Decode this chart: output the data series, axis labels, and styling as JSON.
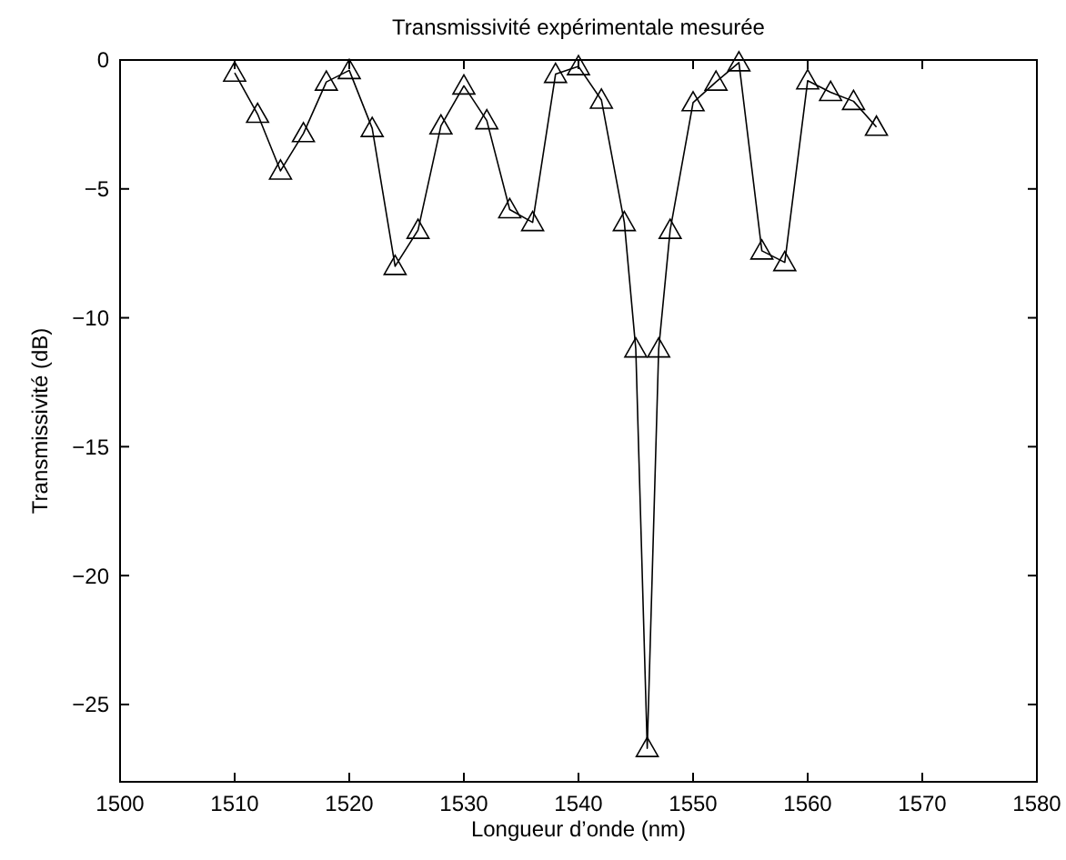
{
  "chart_data": {
    "type": "line",
    "title": "Transmissivité expérimentale mesurée",
    "xlabel": "Longueur d’onde (nm)",
    "ylabel": "Transmissivité (dB)",
    "x": [
      1510,
      1512,
      1514,
      1516,
      1518,
      1520,
      1522,
      1524,
      1526,
      1528,
      1530,
      1532,
      1534,
      1536,
      1538,
      1540,
      1542,
      1544,
      1545,
      1546,
      1547,
      1548,
      1550,
      1552,
      1554,
      1556,
      1558,
      1560,
      1562,
      1564,
      1566
    ],
    "series": [
      {
        "color": "#000000",
        "values": [
          -0.5,
          -2.1,
          -4.3,
          -2.85,
          -0.85,
          -0.4,
          -2.65,
          -8.0,
          -6.6,
          -2.55,
          -1.0,
          -2.35,
          -5.8,
          -6.3,
          -0.55,
          -0.25,
          -1.55,
          -6.3,
          -11.2,
          -26.7,
          -11.2,
          -6.6,
          -1.65,
          -0.85,
          -0.1,
          -7.4,
          -7.85,
          -0.8,
          -1.25,
          -1.6,
          -2.6
        ]
      }
    ],
    "xlim": [
      1500,
      1580
    ],
    "ylim": [
      -28,
      0
    ],
    "xticks": [
      1500,
      1510,
      1520,
      1530,
      1540,
      1550,
      1560,
      1570,
      1580
    ],
    "yticks": [
      {
        "value": -25,
        "label": "−25"
      },
      {
        "value": -20,
        "label": "−20"
      },
      {
        "value": -15,
        "label": "−15"
      },
      {
        "value": -10,
        "label": "−10"
      },
      {
        "value": -5,
        "label": "−5"
      },
      0
    ],
    "marker": "triangle",
    "line_style": "solid",
    "grid": false
  }
}
